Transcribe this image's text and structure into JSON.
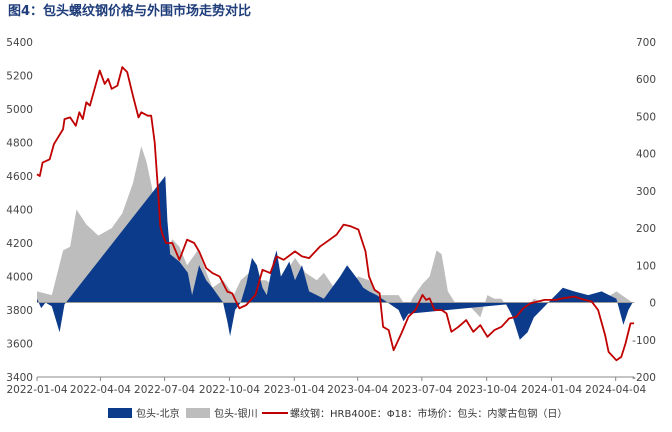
{
  "chart_data": {
    "type": "line",
    "title": "图4：包头螺纹钢价格与外围市场走势对比",
    "x_ticks": [
      "2022-01-04",
      "2022-04-04",
      "2022-07-04",
      "2022-10-04",
      "2023-01-04",
      "2023-04-04",
      "2023-07-04",
      "2023-10-04",
      "2024-01-04",
      "2024-04-04"
    ],
    "x_range": [
      "2022-01-04",
      "2024-04-30"
    ],
    "left_axis": {
      "ticks": [
        3400,
        3600,
        3800,
        4000,
        4200,
        4400,
        4600,
        4800,
        5000,
        5200,
        5400
      ],
      "range": [
        3400,
        5400
      ]
    },
    "right_axis": {
      "ticks": [
        -200,
        -100,
        0,
        100,
        200,
        300,
        400,
        500,
        600,
        700
      ],
      "range": [
        -200,
        700
      ]
    },
    "grid": false,
    "legend_position": "bottom",
    "series": [
      {
        "name": "包头-北京",
        "type": "area",
        "axis": "right",
        "color": "#0d3b8c",
        "points": [
          [
            "2022-01-04",
            10
          ],
          [
            "2022-01-10",
            -15
          ],
          [
            "2022-01-16",
            0
          ],
          [
            "2022-01-25",
            -10
          ],
          [
            "2022-02-05",
            -80
          ],
          [
            "2022-02-12",
            -5
          ],
          [
            "2022-07-05",
            340
          ],
          [
            "2022-07-08",
            220
          ],
          [
            "2022-07-12",
            130
          ],
          [
            "2022-07-25",
            110
          ],
          [
            "2022-08-06",
            80
          ],
          [
            "2022-08-12",
            20
          ],
          [
            "2022-08-22",
            100
          ],
          [
            "2022-09-01",
            60
          ],
          [
            "2022-09-10",
            40
          ],
          [
            "2022-09-25",
            0
          ],
          [
            "2022-10-01",
            -50
          ],
          [
            "2022-10-05",
            -90
          ],
          [
            "2022-10-12",
            -20
          ],
          [
            "2022-10-20",
            0
          ],
          [
            "2022-10-28",
            50
          ],
          [
            "2022-11-05",
            120
          ],
          [
            "2022-11-12",
            100
          ],
          [
            "2022-11-20",
            40
          ],
          [
            "2022-11-26",
            20
          ],
          [
            "2022-12-05",
            110
          ],
          [
            "2022-12-10",
            140
          ],
          [
            "2022-12-16",
            70
          ],
          [
            "2022-12-22",
            90
          ],
          [
            "2022-12-28",
            110
          ],
          [
            "2023-01-05",
            60
          ],
          [
            "2023-01-15",
            100
          ],
          [
            "2023-01-25",
            30
          ],
          [
            "2023-02-05",
            20
          ],
          [
            "2023-02-15",
            10
          ],
          [
            "2023-03-10",
            70
          ],
          [
            "2023-03-20",
            100
          ],
          [
            "2023-04-05",
            60
          ],
          [
            "2023-04-12",
            40
          ],
          [
            "2023-04-20",
            30
          ],
          [
            "2023-05-01",
            20
          ],
          [
            "2023-06-01",
            -20
          ],
          [
            "2023-06-08",
            -50
          ],
          [
            "2023-06-15",
            -30
          ],
          [
            "2023-11-01",
            -5
          ],
          [
            "2023-11-10",
            -40
          ],
          [
            "2023-11-20",
            -100
          ],
          [
            "2023-12-01",
            -80
          ],
          [
            "2023-12-10",
            -40
          ],
          [
            "2024-01-20",
            40
          ],
          [
            "2024-02-05",
            30
          ],
          [
            "2024-02-25",
            20
          ],
          [
            "2024-03-15",
            30
          ],
          [
            "2024-04-05",
            10
          ],
          [
            "2024-04-15",
            -60
          ],
          [
            "2024-04-22",
            -20
          ],
          [
            "2024-04-28",
            0
          ]
        ]
      },
      {
        "name": "包头-银川",
        "type": "area",
        "axis": "right",
        "color": "#bdbdbd",
        "points": [
          [
            "2022-01-04",
            30
          ],
          [
            "2022-01-25",
            20
          ],
          [
            "2022-02-10",
            140
          ],
          [
            "2022-02-20",
            150
          ],
          [
            "2022-03-01",
            250
          ],
          [
            "2022-03-15",
            210
          ],
          [
            "2022-04-01",
            180
          ],
          [
            "2022-04-20",
            200
          ],
          [
            "2022-05-05",
            240
          ],
          [
            "2022-05-20",
            320
          ],
          [
            "2022-06-01",
            420
          ],
          [
            "2022-06-08",
            380
          ],
          [
            "2022-06-16",
            310
          ],
          [
            "2022-06-25",
            200
          ],
          [
            "2022-07-05",
            130
          ],
          [
            "2022-07-15",
            170
          ],
          [
            "2022-07-25",
            150
          ],
          [
            "2022-08-05",
            100
          ],
          [
            "2022-08-20",
            140
          ],
          [
            "2022-09-10",
            40
          ],
          [
            "2022-09-25",
            60
          ],
          [
            "2022-10-10",
            20
          ],
          [
            "2022-10-20",
            60
          ],
          [
            "2022-11-01",
            80
          ],
          [
            "2022-11-15",
            60
          ],
          [
            "2022-11-25",
            60
          ],
          [
            "2022-12-10",
            40
          ],
          [
            "2023-01-05",
            120
          ],
          [
            "2023-01-20",
            80
          ],
          [
            "2023-02-05",
            60
          ],
          [
            "2023-02-15",
            80
          ],
          [
            "2023-03-05",
            30
          ],
          [
            "2023-03-15",
            20
          ],
          [
            "2023-03-25",
            50
          ],
          [
            "2023-04-05",
            70
          ],
          [
            "2023-04-20",
            60
          ],
          [
            "2023-05-05",
            20
          ],
          [
            "2023-06-01",
            20
          ],
          [
            "2023-06-15",
            -20
          ],
          [
            "2023-06-20",
            10
          ],
          [
            "2023-07-05",
            50
          ],
          [
            "2023-07-15",
            70
          ],
          [
            "2023-07-25",
            140
          ],
          [
            "2023-08-01",
            130
          ],
          [
            "2023-08-10",
            30
          ],
          [
            "2023-08-20",
            0
          ],
          [
            "2023-09-01",
            0
          ],
          [
            "2023-09-10",
            -10
          ],
          [
            "2023-09-25",
            -40
          ],
          [
            "2023-10-05",
            20
          ],
          [
            "2023-10-15",
            10
          ],
          [
            "2023-10-25",
            10
          ],
          [
            "2023-11-05",
            -20
          ],
          [
            "2023-11-20",
            -40
          ],
          [
            "2023-12-10",
            10
          ],
          [
            "2023-12-25",
            0
          ],
          [
            "2024-01-10",
            0
          ],
          [
            "2024-02-01",
            0
          ],
          [
            "2024-02-20",
            20
          ],
          [
            "2024-03-05",
            20
          ],
          [
            "2024-03-20",
            10
          ],
          [
            "2024-04-05",
            30
          ],
          [
            "2024-04-28",
            0
          ]
        ]
      },
      {
        "name": "螺纹钢：HRB400E：Φ18：市场价：包头：内蒙古包钢（日）",
        "type": "line",
        "axis": "left",
        "color": "#c00000",
        "points": [
          [
            "2022-01-04",
            4610
          ],
          [
            "2022-01-08",
            4600
          ],
          [
            "2022-01-12",
            4680
          ],
          [
            "2022-01-22",
            4700
          ],
          [
            "2022-01-28",
            4790
          ],
          [
            "2022-02-10",
            4880
          ],
          [
            "2022-02-12",
            4940
          ],
          [
            "2022-02-20",
            4950
          ],
          [
            "2022-02-28",
            4900
          ],
          [
            "2022-03-05",
            4980
          ],
          [
            "2022-03-10",
            4940
          ],
          [
            "2022-03-15",
            5040
          ],
          [
            "2022-03-20",
            5020
          ],
          [
            "2022-03-30",
            5170
          ],
          [
            "2022-04-03",
            5230
          ],
          [
            "2022-04-10",
            5150
          ],
          [
            "2022-04-15",
            5180
          ],
          [
            "2022-04-20",
            5120
          ],
          [
            "2022-04-28",
            5140
          ],
          [
            "2022-05-05",
            5250
          ],
          [
            "2022-05-12",
            5220
          ],
          [
            "2022-05-20",
            5080
          ],
          [
            "2022-05-28",
            4950
          ],
          [
            "2022-06-01",
            4980
          ],
          [
            "2022-06-10",
            4960
          ],
          [
            "2022-06-15",
            4960
          ],
          [
            "2022-06-20",
            4800
          ],
          [
            "2022-06-25",
            4500
          ],
          [
            "2022-06-28",
            4300
          ],
          [
            "2022-07-01",
            4250
          ],
          [
            "2022-07-06",
            4200
          ],
          [
            "2022-07-15",
            4200
          ],
          [
            "2022-07-25",
            4100
          ],
          [
            "2022-08-05",
            4220
          ],
          [
            "2022-08-15",
            4200
          ],
          [
            "2022-08-22",
            4150
          ],
          [
            "2022-09-01",
            4050
          ],
          [
            "2022-09-10",
            4020
          ],
          [
            "2022-09-20",
            4000
          ],
          [
            "2022-10-01",
            3910
          ],
          [
            "2022-10-08",
            3900
          ],
          [
            "2022-10-18",
            3810
          ],
          [
            "2022-10-28",
            3830
          ],
          [
            "2022-11-10",
            3890
          ],
          [
            "2022-11-20",
            4040
          ],
          [
            "2022-12-01",
            4020
          ],
          [
            "2022-12-10",
            4120
          ],
          [
            "2022-12-20",
            4100
          ],
          [
            "2023-01-05",
            4150
          ],
          [
            "2023-01-15",
            4120
          ],
          [
            "2023-01-25",
            4110
          ],
          [
            "2023-02-10",
            4180
          ],
          [
            "2023-02-20",
            4210
          ],
          [
            "2023-03-05",
            4250
          ],
          [
            "2023-03-15",
            4310
          ],
          [
            "2023-03-25",
            4300
          ],
          [
            "2023-04-05",
            4280
          ],
          [
            "2023-04-15",
            4150
          ],
          [
            "2023-04-20",
            4000
          ],
          [
            "2023-04-28",
            3920
          ],
          [
            "2023-05-05",
            3900
          ],
          [
            "2023-05-10",
            3700
          ],
          [
            "2023-05-18",
            3680
          ],
          [
            "2023-05-25",
            3560
          ],
          [
            "2023-06-05",
            3660
          ],
          [
            "2023-06-15",
            3760
          ],
          [
            "2023-06-25",
            3800
          ],
          [
            "2023-07-05",
            3890
          ],
          [
            "2023-07-10",
            3860
          ],
          [
            "2023-07-15",
            3870
          ],
          [
            "2023-07-22",
            3800
          ],
          [
            "2023-08-01",
            3800
          ],
          [
            "2023-08-08",
            3780
          ],
          [
            "2023-08-15",
            3670
          ],
          [
            "2023-08-25",
            3700
          ],
          [
            "2023-09-05",
            3740
          ],
          [
            "2023-09-15",
            3670
          ],
          [
            "2023-09-25",
            3710
          ],
          [
            "2023-10-05",
            3640
          ],
          [
            "2023-10-15",
            3680
          ],
          [
            "2023-10-25",
            3700
          ],
          [
            "2023-11-05",
            3750
          ],
          [
            "2023-11-15",
            3760
          ],
          [
            "2023-11-25",
            3810
          ],
          [
            "2023-12-05",
            3840
          ],
          [
            "2023-12-15",
            3850
          ],
          [
            "2023-12-25",
            3860
          ],
          [
            "2024-01-10",
            3860
          ],
          [
            "2024-01-20",
            3870
          ],
          [
            "2024-02-05",
            3880
          ],
          [
            "2024-02-20",
            3860
          ],
          [
            "2024-03-01",
            3850
          ],
          [
            "2024-03-10",
            3800
          ],
          [
            "2024-03-20",
            3650
          ],
          [
            "2024-03-25",
            3550
          ],
          [
            "2024-04-05",
            3500
          ],
          [
            "2024-04-12",
            3520
          ],
          [
            "2024-04-18",
            3600
          ],
          [
            "2024-04-25",
            3720
          ],
          [
            "2024-04-30",
            3720
          ]
        ]
      }
    ]
  }
}
